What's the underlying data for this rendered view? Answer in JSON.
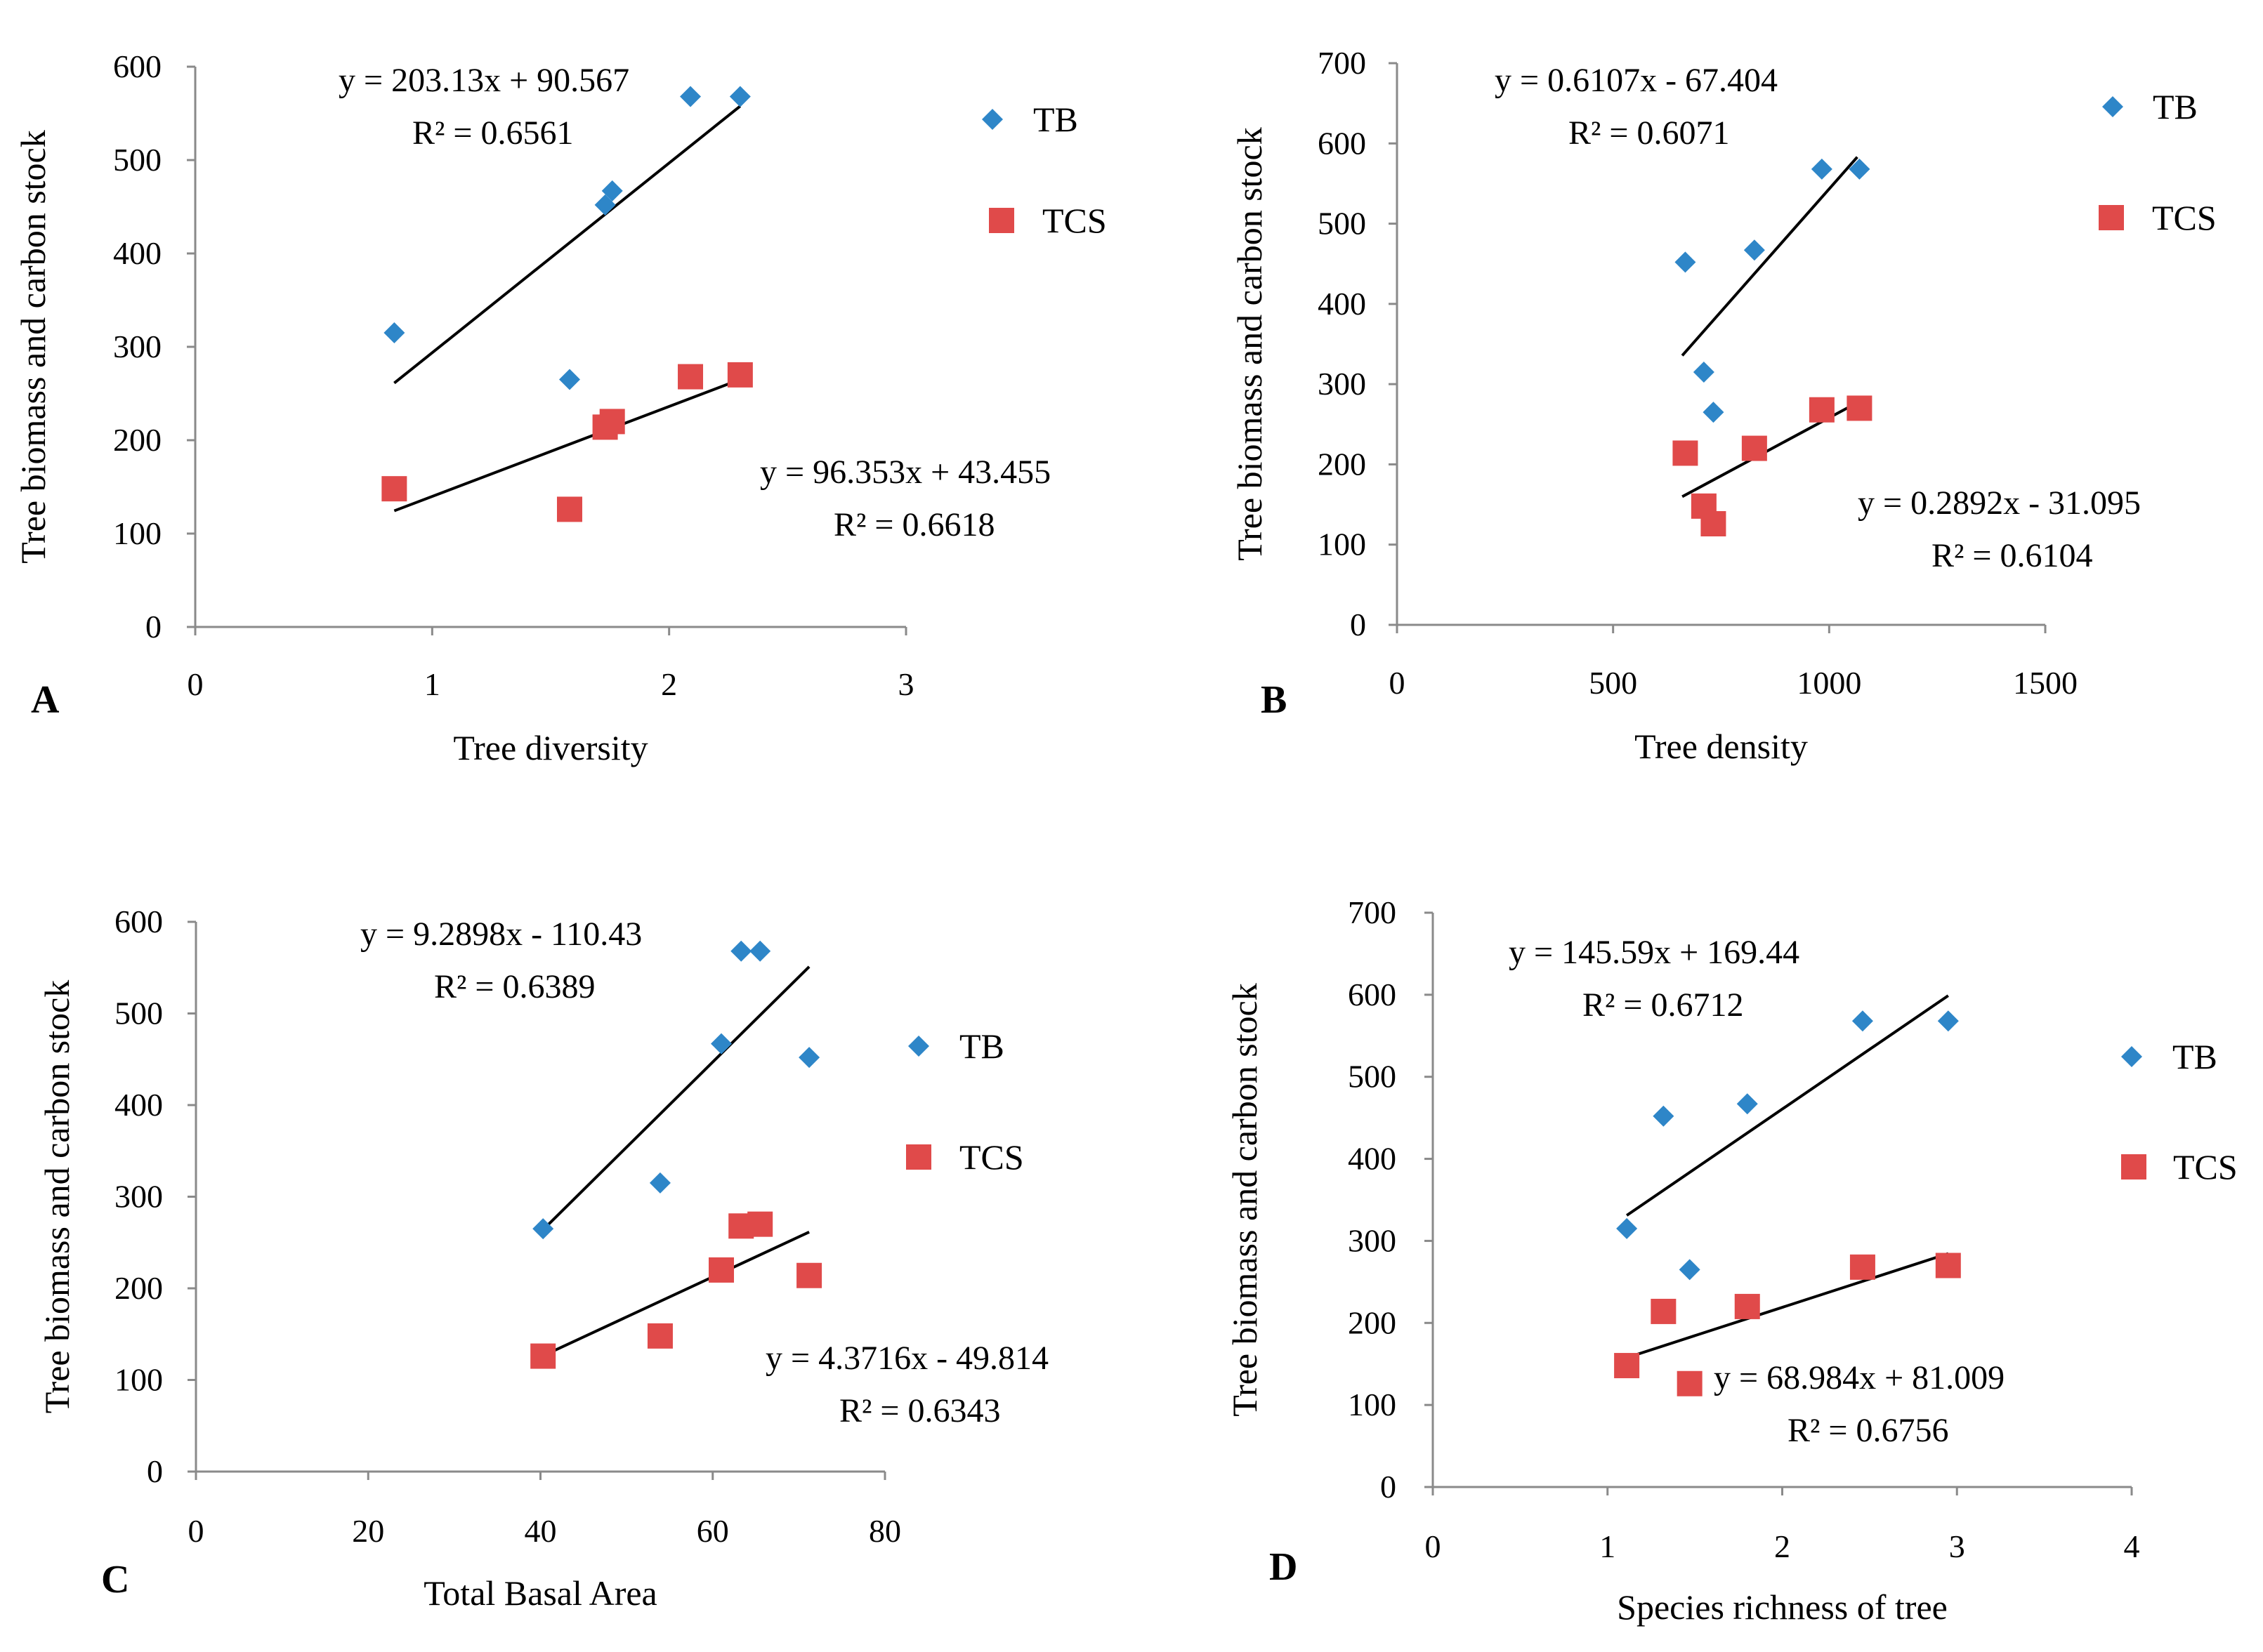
{
  "chart_data": [
    {
      "panel": "A",
      "type": "scatter",
      "xlabel": "Tree diversity",
      "ylabel": "Tree biomass and carbon stock",
      "xlim": [
        0,
        3
      ],
      "ylim": [
        0,
        600
      ],
      "xticks": [
        0,
        1,
        2,
        3
      ],
      "yticks": [
        0,
        100,
        200,
        300,
        400,
        500,
        600
      ],
      "xtick_labels": [
        "0",
        "1",
        "2",
        "3"
      ],
      "ytick_labels": [
        "0",
        "100",
        "200",
        "300",
        "400",
        "500",
        "600"
      ],
      "legend_position": "top-right",
      "series": [
        {
          "name": "TB",
          "marker": "diamond",
          "color": "#2e86c8",
          "points": [
            [
              0.84,
              315
            ],
            [
              1.58,
              265
            ],
            [
              1.73,
              452
            ],
            [
              1.76,
              467
            ],
            [
              2.09,
              568
            ],
            [
              2.3,
              568
            ]
          ],
          "trendline": {
            "slope": 203.13,
            "intercept": 90.567,
            "x_range": [
              0.84,
              2.3
            ]
          },
          "equation": "y = 203.13x + 90.567",
          "r2": "R² = 0.6561",
          "label_pos": "top"
        },
        {
          "name": "TCS",
          "marker": "square",
          "color": "#e04a4a",
          "points": [
            [
              0.84,
              148
            ],
            [
              1.58,
              126
            ],
            [
              1.73,
              214
            ],
            [
              1.76,
              220
            ],
            [
              2.09,
              268
            ],
            [
              2.3,
              270
            ]
          ],
          "trendline": {
            "slope": 96.353,
            "intercept": 43.455,
            "x_range": [
              0.84,
              2.3
            ]
          },
          "equation": "y = 96.353x + 43.455",
          "r2": "R² = 0.6618",
          "label_pos": "bottom-right"
        }
      ]
    },
    {
      "panel": "B",
      "type": "scatter",
      "xlabel": "Tree density",
      "ylabel": "Tree biomass and carbon stock",
      "xlim": [
        0,
        1500
      ],
      "ylim": [
        0,
        700
      ],
      "xticks": [
        0,
        500,
        1000,
        1500
      ],
      "yticks": [
        0,
        100,
        200,
        300,
        400,
        500,
        600,
        700
      ],
      "xtick_labels": [
        "0",
        "500",
        "1000",
        "1500"
      ],
      "ytick_labels": [
        "0",
        "100",
        "200",
        "300",
        "400",
        "500",
        "600",
        "700"
      ],
      "legend_position": "top-right",
      "series": [
        {
          "name": "TB",
          "marker": "diamond",
          "color": "#2e86c8",
          "points": [
            [
              667,
              452
            ],
            [
              710,
              315
            ],
            [
              732,
              265
            ],
            [
              827,
              467
            ],
            [
              983,
              568
            ],
            [
              1070,
              568
            ]
          ],
          "trendline": {
            "slope": 0.6107,
            "intercept": -67.404,
            "x_range": [
              660,
              1065
            ]
          },
          "equation": "y = 0.6107x - 67.404",
          "r2": "R² = 0.6071",
          "label_pos": "top"
        },
        {
          "name": "TCS",
          "marker": "square",
          "color": "#e04a4a",
          "points": [
            [
              667,
              214
            ],
            [
              710,
              148
            ],
            [
              732,
              126
            ],
            [
              827,
              220
            ],
            [
              983,
              268
            ],
            [
              1070,
              270
            ]
          ],
          "trendline": {
            "slope": 0.2892,
            "intercept": -31.095,
            "x_range": [
              660,
              1070
            ]
          },
          "equation": "y = 0.2892x - 31.095",
          "r2": "R² = 0.6104",
          "label_pos": "bottom-right"
        }
      ]
    },
    {
      "panel": "C",
      "type": "scatter",
      "xlabel": "Total Basal Area",
      "ylabel": "Tree biomass and carbon stock",
      "xlim": [
        0,
        80
      ],
      "ylim": [
        0,
        600
      ],
      "xticks": [
        0,
        20,
        40,
        60,
        80
      ],
      "yticks": [
        0,
        100,
        200,
        300,
        400,
        500,
        600
      ],
      "xtick_labels": [
        "0",
        "20",
        "40",
        "60",
        "80"
      ],
      "ytick_labels": [
        "0",
        "100",
        "200",
        "300",
        "400",
        "500",
        "600"
      ],
      "legend_position": "right",
      "series": [
        {
          "name": "TB",
          "marker": "diamond",
          "color": "#2e86c8",
          "points": [
            [
              40.3,
              265
            ],
            [
              53.9,
              315
            ],
            [
              61,
              467
            ],
            [
              63.3,
              568
            ],
            [
              65.5,
              568
            ],
            [
              71.2,
              452
            ]
          ],
          "trendline": {
            "slope": 9.2898,
            "intercept": -110.43,
            "x_range": [
              40.3,
              71.2
            ]
          },
          "equation": "y = 9.2898x - 110.43",
          "r2": "R² = 0.6389",
          "label_pos": "top"
        },
        {
          "name": "TCS",
          "marker": "square",
          "color": "#e04a4a",
          "points": [
            [
              40.3,
              126
            ],
            [
              53.9,
              148
            ],
            [
              61,
              220
            ],
            [
              63.3,
              268
            ],
            [
              65.5,
              270
            ],
            [
              71.2,
              214
            ]
          ],
          "trendline": {
            "slope": 4.3716,
            "intercept": -49.814,
            "x_range": [
              40.3,
              71.2
            ]
          },
          "equation": "y = 4.3716x - 49.814",
          "r2": "R² = 0.6343",
          "label_pos": "bottom-right"
        }
      ]
    },
    {
      "panel": "D",
      "type": "scatter",
      "xlabel": "Species richness of tree",
      "ylabel": "Tree biomass and carbon stock",
      "xlim": [
        0,
        4
      ],
      "ylim": [
        0,
        700
      ],
      "xticks": [
        0,
        1,
        2,
        3,
        4
      ],
      "yticks": [
        0,
        100,
        200,
        300,
        400,
        500,
        600,
        700
      ],
      "xtick_labels": [
        "0",
        "1",
        "2",
        "3",
        "4"
      ],
      "ytick_labels": [
        "0",
        "100",
        "200",
        "300",
        "400",
        "500",
        "600",
        "700"
      ],
      "legend_position": "right",
      "series": [
        {
          "name": "TB",
          "marker": "diamond",
          "color": "#2e86c8",
          "points": [
            [
              1.11,
              315
            ],
            [
              1.32,
              452
            ],
            [
              1.47,
              265
            ],
            [
              1.8,
              467
            ],
            [
              2.46,
              568
            ],
            [
              2.95,
              568
            ]
          ],
          "trendline": {
            "slope": 145.59,
            "intercept": 169.44,
            "x_range": [
              1.11,
              2.95
            ]
          },
          "equation": "y = 145.59x + 169.44",
          "r2": "R² = 0.6712",
          "label_pos": "top"
        },
        {
          "name": "TCS",
          "marker": "square",
          "color": "#e04a4a",
          "points": [
            [
              1.11,
              148
            ],
            [
              1.32,
              214
            ],
            [
              1.47,
              126
            ],
            [
              1.8,
              220
            ],
            [
              2.46,
              268
            ],
            [
              2.95,
              270
            ]
          ],
          "trendline": {
            "slope": 68.984,
            "intercept": 81.009,
            "x_range": [
              1.11,
              2.95
            ]
          },
          "equation": "y = 68.984x + 81.009",
          "r2": "R² = 0.6756",
          "label_pos": "bottom-right"
        }
      ]
    }
  ]
}
